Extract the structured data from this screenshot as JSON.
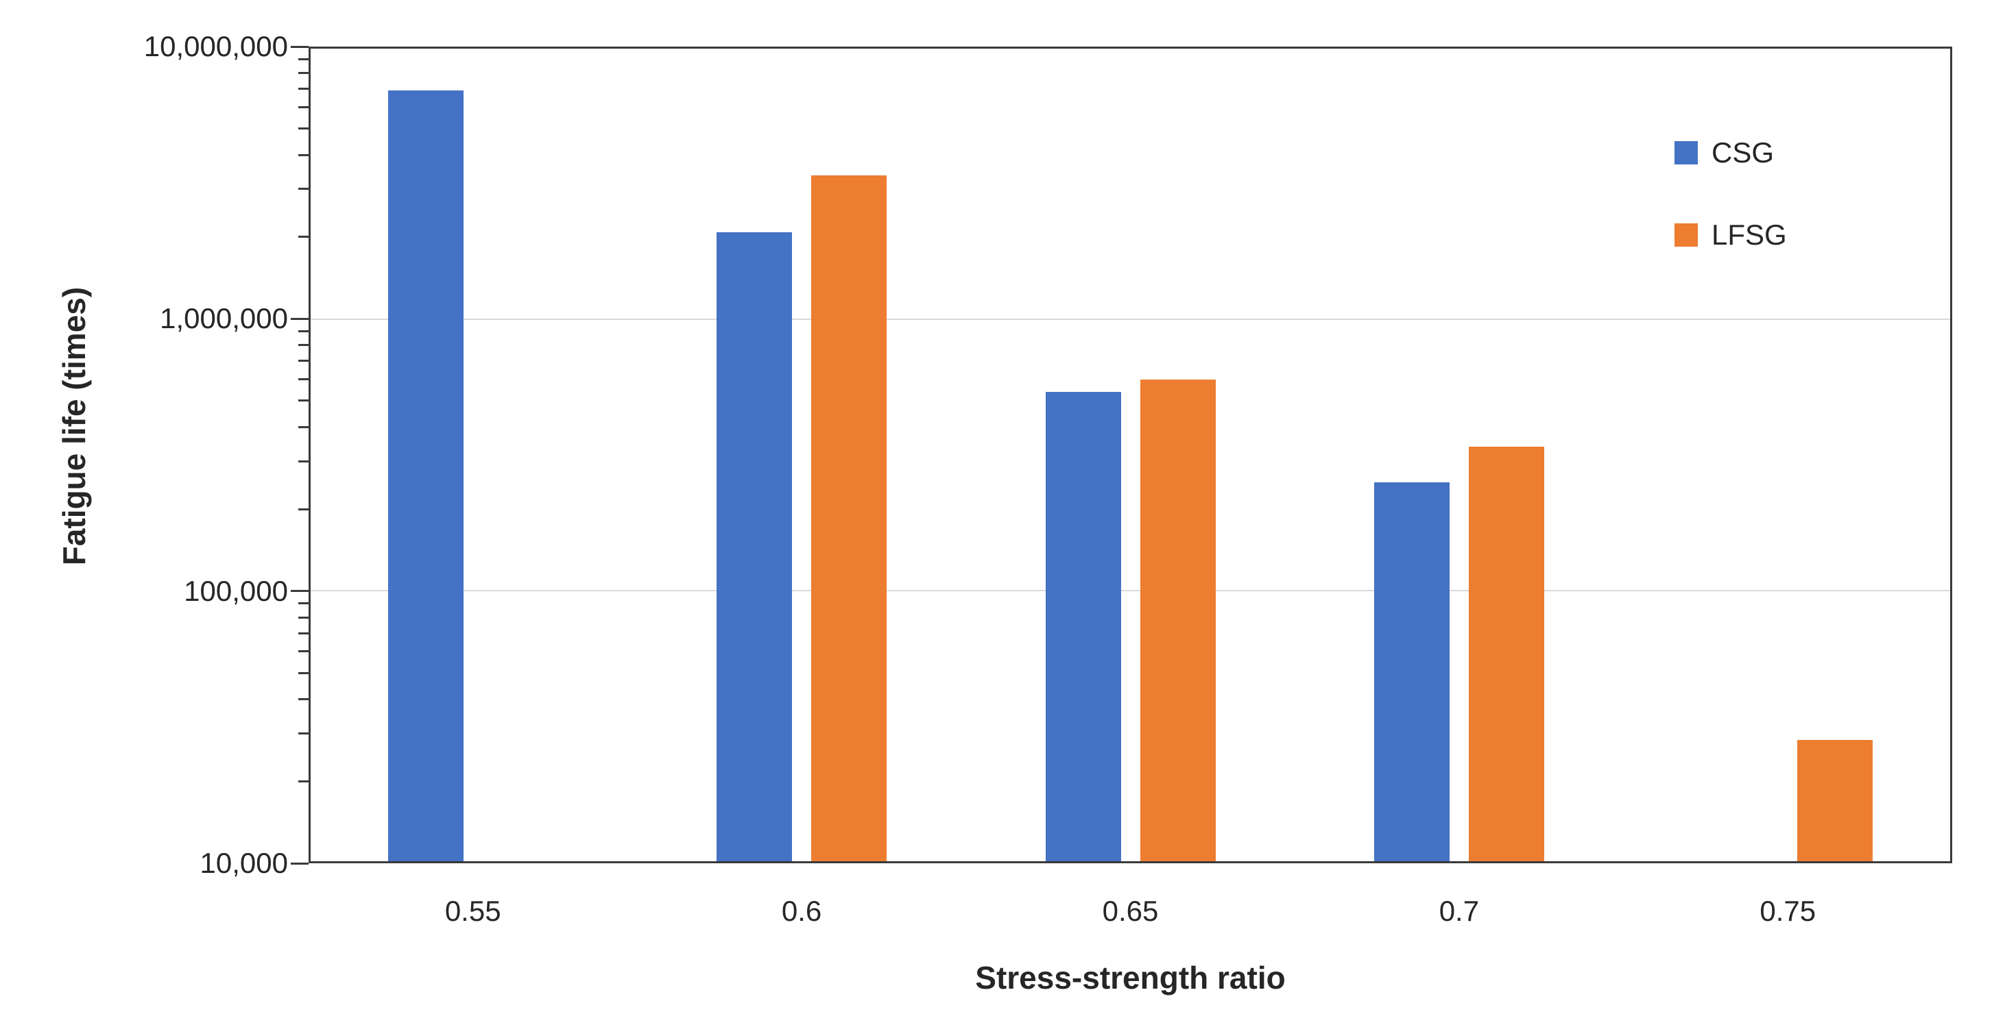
{
  "chart_data": {
    "type": "bar",
    "title": "",
    "xlabel": "Stress-strength ratio",
    "ylabel": "Fatigue life (times)",
    "y_scale": "log",
    "ylim": [
      10000,
      10000000
    ],
    "grid": "horizontal gridlines at log decades",
    "legend_position": "top-right inside plot",
    "categories": [
      "0.55",
      "0.6",
      "0.65",
      "0.7",
      "0.75"
    ],
    "series": [
      {
        "name": "CSG",
        "color": "#4472C4",
        "values": [
          7000000,
          2100000,
          540000,
          250000,
          null
        ]
      },
      {
        "name": "LFSG",
        "color": "#ED7D31",
        "values": [
          null,
          3400000,
          600000,
          340000,
          28000
        ]
      }
    ],
    "y_ticks": [
      {
        "value": 10000000,
        "label": "10,000,000"
      },
      {
        "value": 1000000,
        "label": "1,000,000"
      },
      {
        "value": 100000,
        "label": "100,000"
      },
      {
        "value": 10000,
        "label": "10,000"
      }
    ]
  },
  "colors": {
    "axis": "#3a3a3a",
    "gridline": "#d9d9d9",
    "text": "#262626",
    "background": "#ffffff"
  }
}
